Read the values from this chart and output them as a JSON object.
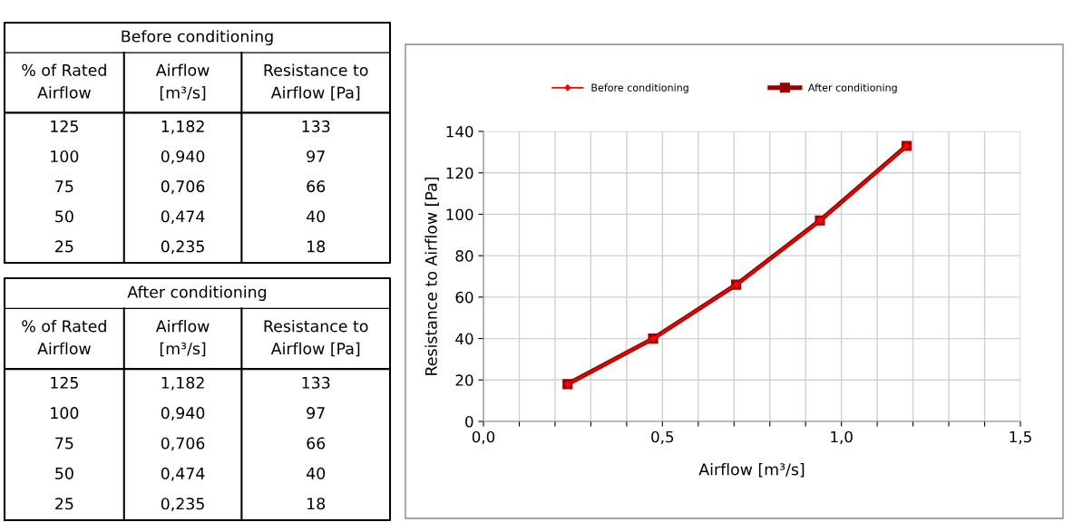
{
  "chart_data": {
    "type": "line",
    "xlabel": "Airflow [m³/s]",
    "ylabel": "Resistance to Airflow [Pa]",
    "legend": "top",
    "grid": true,
    "annotations": [
      "Before conditioning",
      "% of Rated\nAirflow",
      "Airflow\n[m³/s]",
      "Resistance to\nAirflow [Pa]",
      "125",
      "1,182",
      "133",
      "100",
      "0,940",
      "97",
      "75",
      "0,706",
      "66",
      "50",
      "0,474",
      "40",
      "25",
      "0,235",
      "18",
      "After conditioning",
      "% of Rated\nAirflow",
      "Airflow\n[m³/s]",
      "Resistance to\nAirflow [Pa]",
      "125",
      "1,182",
      "133",
      "100",
      "0,940",
      "97",
      "75",
      "0,706",
      "66",
      "50",
      "0,474",
      "40",
      "25",
      "0,235",
      "18"
    ],
    "xlim": [
      0,
      1.5
    ],
    "xticks": [
      {
        "value": 0,
        "label": "0,0"
      },
      {
        "value": 0.1,
        "label": null
      },
      {
        "value": 0.2,
        "label": null
      },
      {
        "value": 0.3,
        "label": null
      },
      {
        "value": 0.4,
        "label": null
      },
      {
        "value": 0.5,
        "label": "0,5"
      },
      {
        "value": 0.6,
        "label": null
      },
      {
        "value": 0.7,
        "label": null
      },
      {
        "value": 0.8,
        "label": null
      },
      {
        "value": 0.9,
        "label": null
      },
      {
        "value": 1.0,
        "label": "1,0"
      },
      {
        "value": 1.1,
        "label": null
      },
      {
        "value": 1.2,
        "label": null
      },
      {
        "value": 1.3,
        "label": null
      },
      {
        "value": 1.4,
        "label": null
      },
      {
        "value": 1.5,
        "label": "1,5"
      }
    ],
    "ylim": [
      0,
      140
    ],
    "yticks": [
      0,
      20,
      40,
      60,
      80,
      100,
      120,
      140
    ],
    "series": [
      {
        "name": "Before conditioning",
        "color": "#ff0000",
        "marker": "diamond",
        "x": [
          1.182,
          0.94,
          0.706,
          0.474,
          0.235
        ],
        "values": [
          133,
          97,
          66,
          40,
          18
        ]
      },
      {
        "name": "After conditioning",
        "color": "#990000",
        "marker": "square",
        "x": [
          1.182,
          0.94,
          0.706,
          0.474,
          0.235
        ],
        "values": [
          133,
          97,
          66,
          40,
          18
        ]
      }
    ]
  }
}
